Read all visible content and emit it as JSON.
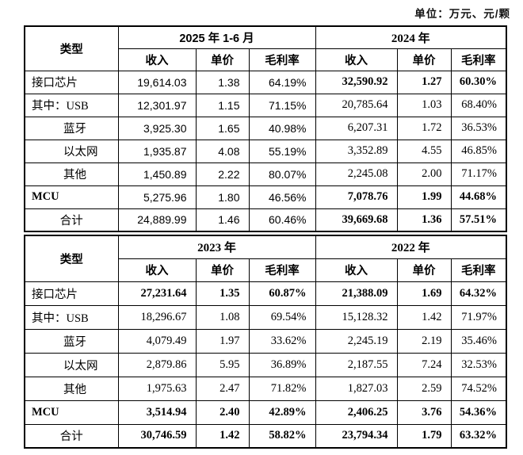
{
  "unit_note": "单位：万元、元/颗",
  "tables": [
    {
      "type_header": "类型",
      "periods": [
        {
          "label": "2025 年 1-6 月",
          "columns": [
            "收入",
            "单价",
            "毛利率"
          ]
        },
        {
          "label": "2024 年",
          "columns": [
            "收入",
            "单价",
            "毛利率"
          ]
        }
      ],
      "rows": [
        {
          "label": "接口芯片",
          "row_type": "category",
          "bold_label": false,
          "emphasized": true,
          "values": [
            [
              "19,614.03",
              "1.38",
              "64.19%"
            ],
            [
              "32,590.92",
              "1.27",
              "60.30%"
            ]
          ]
        },
        {
          "label": "其中：USB",
          "row_type": "subitem_lead",
          "bold_label": false,
          "emphasized": false,
          "values": [
            [
              "12,301.97",
              "1.15",
              "71.15%"
            ],
            [
              "20,785.64",
              "1.03",
              "68.40%"
            ]
          ]
        },
        {
          "label": "蓝牙",
          "row_type": "subitem",
          "bold_label": false,
          "emphasized": false,
          "values": [
            [
              "3,925.30",
              "1.65",
              "40.98%"
            ],
            [
              "6,207.31",
              "1.72",
              "36.53%"
            ]
          ]
        },
        {
          "label": "以太网",
          "row_type": "subitem",
          "bold_label": false,
          "emphasized": false,
          "values": [
            [
              "1,935.87",
              "4.08",
              "55.19%"
            ],
            [
              "3,352.89",
              "4.55",
              "46.85%"
            ]
          ]
        },
        {
          "label": "其他",
          "row_type": "subitem",
          "bold_label": false,
          "emphasized": false,
          "values": [
            [
              "1,450.89",
              "2.22",
              "80.07%"
            ],
            [
              "2,245.08",
              "2.00",
              "71.17%"
            ]
          ]
        },
        {
          "label": "MCU",
          "row_type": "category",
          "bold_label": true,
          "emphasized": true,
          "values": [
            [
              "5,275.96",
              "1.80",
              "46.56%"
            ],
            [
              "7,078.76",
              "1.99",
              "44.68%"
            ]
          ]
        },
        {
          "label": "合计",
          "row_type": "total",
          "bold_label": false,
          "emphasized": true,
          "values": [
            [
              "24,889.99",
              "1.46",
              "60.46%"
            ],
            [
              "39,669.68",
              "1.36",
              "57.51%"
            ]
          ]
        }
      ]
    },
    {
      "type_header": "类型",
      "periods": [
        {
          "label": "2023 年",
          "columns": [
            "收入",
            "单价",
            "毛利率"
          ]
        },
        {
          "label": "2022 年",
          "columns": [
            "收入",
            "单价",
            "毛利率"
          ]
        }
      ],
      "rows": [
        {
          "label": "接口芯片",
          "row_type": "category",
          "bold_label": false,
          "emphasized": true,
          "values": [
            [
              "27,231.64",
              "1.35",
              "60.87%"
            ],
            [
              "21,388.09",
              "1.69",
              "64.32%"
            ]
          ]
        },
        {
          "label": "其中：USB",
          "row_type": "subitem_lead",
          "bold_label": false,
          "emphasized": false,
          "values": [
            [
              "18,296.67",
              "1.08",
              "69.54%"
            ],
            [
              "15,128.32",
              "1.42",
              "71.97%"
            ]
          ]
        },
        {
          "label": "蓝牙",
          "row_type": "subitem",
          "bold_label": false,
          "emphasized": false,
          "values": [
            [
              "4,079.49",
              "1.97",
              "33.62%"
            ],
            [
              "2,245.19",
              "2.19",
              "35.46%"
            ]
          ]
        },
        {
          "label": "以太网",
          "row_type": "subitem",
          "bold_label": false,
          "emphasized": false,
          "values": [
            [
              "2,879.86",
              "5.95",
              "36.89%"
            ],
            [
              "2,187.55",
              "7.24",
              "32.53%"
            ]
          ]
        },
        {
          "label": "其他",
          "row_type": "subitem",
          "bold_label": false,
          "emphasized": false,
          "values": [
            [
              "1,975.63",
              "2.47",
              "71.82%"
            ],
            [
              "1,827.03",
              "2.59",
              "74.52%"
            ]
          ]
        },
        {
          "label": "MCU",
          "row_type": "category",
          "bold_label": true,
          "emphasized": true,
          "values": [
            [
              "3,514.94",
              "2.40",
              "42.89%"
            ],
            [
              "2,406.25",
              "3.76",
              "54.36%"
            ]
          ]
        },
        {
          "label": "合计",
          "row_type": "total",
          "bold_label": false,
          "emphasized": true,
          "values": [
            [
              "30,746.59",
              "1.42",
              "58.82%"
            ],
            [
              "23,794.34",
              "1.79",
              "63.32%"
            ]
          ]
        }
      ]
    }
  ]
}
